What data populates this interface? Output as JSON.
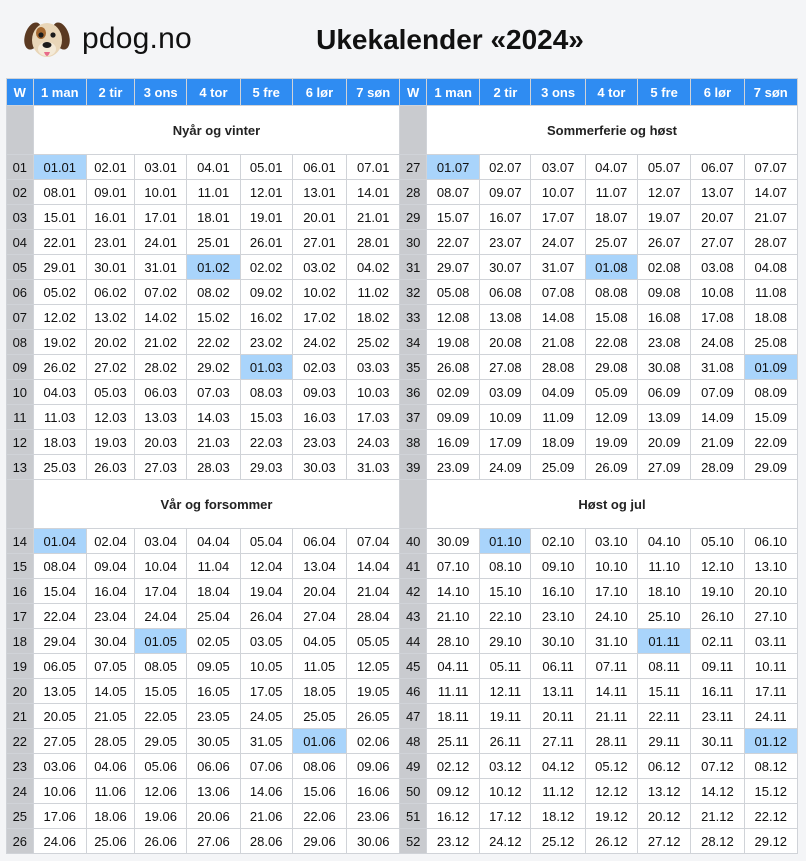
{
  "brand": {
    "name": "pdog.no",
    "icon": "dog-face-icon"
  },
  "title": "Ukekalender «2024»",
  "header": {
    "week_col": "W",
    "days": [
      "1 man",
      "2 tir",
      "3 ons",
      "4 tor",
      "5 fre",
      "6 lør",
      "7 søn"
    ]
  },
  "colors": {
    "header_bg": "#2f8cf2",
    "highlight": "#a9d4fb",
    "week_col_bg": "#c9cbcf"
  },
  "blocks": [
    {
      "left": {
        "title": "Nyår og vinter",
        "rows": [
          {
            "w": "01",
            "d": [
              "01.01",
              "02.01",
              "03.01",
              "04.01",
              "05.01",
              "06.01",
              "07.01"
            ],
            "hl": [
              0
            ]
          },
          {
            "w": "02",
            "d": [
              "08.01",
              "09.01",
              "10.01",
              "11.01",
              "12.01",
              "13.01",
              "14.01"
            ],
            "hl": []
          },
          {
            "w": "03",
            "d": [
              "15.01",
              "16.01",
              "17.01",
              "18.01",
              "19.01",
              "20.01",
              "21.01"
            ],
            "hl": []
          },
          {
            "w": "04",
            "d": [
              "22.01",
              "23.01",
              "24.01",
              "25.01",
              "26.01",
              "27.01",
              "28.01"
            ],
            "hl": []
          },
          {
            "w": "05",
            "d": [
              "29.01",
              "30.01",
              "31.01",
              "01.02",
              "02.02",
              "03.02",
              "04.02"
            ],
            "hl": [
              3
            ]
          },
          {
            "w": "06",
            "d": [
              "05.02",
              "06.02",
              "07.02",
              "08.02",
              "09.02",
              "10.02",
              "11.02"
            ],
            "hl": []
          },
          {
            "w": "07",
            "d": [
              "12.02",
              "13.02",
              "14.02",
              "15.02",
              "16.02",
              "17.02",
              "18.02"
            ],
            "hl": []
          },
          {
            "w": "08",
            "d": [
              "19.02",
              "20.02",
              "21.02",
              "22.02",
              "23.02",
              "24.02",
              "25.02"
            ],
            "hl": []
          },
          {
            "w": "09",
            "d": [
              "26.02",
              "27.02",
              "28.02",
              "29.02",
              "01.03",
              "02.03",
              "03.03"
            ],
            "hl": [
              4
            ]
          },
          {
            "w": "10",
            "d": [
              "04.03",
              "05.03",
              "06.03",
              "07.03",
              "08.03",
              "09.03",
              "10.03"
            ],
            "hl": []
          },
          {
            "w": "11",
            "d": [
              "11.03",
              "12.03",
              "13.03",
              "14.03",
              "15.03",
              "16.03",
              "17.03"
            ],
            "hl": []
          },
          {
            "w": "12",
            "d": [
              "18.03",
              "19.03",
              "20.03",
              "21.03",
              "22.03",
              "23.03",
              "24.03"
            ],
            "hl": []
          },
          {
            "w": "13",
            "d": [
              "25.03",
              "26.03",
              "27.03",
              "28.03",
              "29.03",
              "30.03",
              "31.03"
            ],
            "hl": []
          }
        ]
      },
      "right": {
        "title": "Sommerferie og høst",
        "rows": [
          {
            "w": "27",
            "d": [
              "01.07",
              "02.07",
              "03.07",
              "04.07",
              "05.07",
              "06.07",
              "07.07"
            ],
            "hl": [
              0
            ]
          },
          {
            "w": "28",
            "d": [
              "08.07",
              "09.07",
              "10.07",
              "11.07",
              "12.07",
              "13.07",
              "14.07"
            ],
            "hl": []
          },
          {
            "w": "29",
            "d": [
              "15.07",
              "16.07",
              "17.07",
              "18.07",
              "19.07",
              "20.07",
              "21.07"
            ],
            "hl": []
          },
          {
            "w": "30",
            "d": [
              "22.07",
              "23.07",
              "24.07",
              "25.07",
              "26.07",
              "27.07",
              "28.07"
            ],
            "hl": []
          },
          {
            "w": "31",
            "d": [
              "29.07",
              "30.07",
              "31.07",
              "01.08",
              "02.08",
              "03.08",
              "04.08"
            ],
            "hl": [
              3
            ]
          },
          {
            "w": "32",
            "d": [
              "05.08",
              "06.08",
              "07.08",
              "08.08",
              "09.08",
              "10.08",
              "11.08"
            ],
            "hl": []
          },
          {
            "w": "33",
            "d": [
              "12.08",
              "13.08",
              "14.08",
              "15.08",
              "16.08",
              "17.08",
              "18.08"
            ],
            "hl": []
          },
          {
            "w": "34",
            "d": [
              "19.08",
              "20.08",
              "21.08",
              "22.08",
              "23.08",
              "24.08",
              "25.08"
            ],
            "hl": []
          },
          {
            "w": "35",
            "d": [
              "26.08",
              "27.08",
              "28.08",
              "29.08",
              "30.08",
              "31.08",
              "01.09"
            ],
            "hl": [
              6
            ]
          },
          {
            "w": "36",
            "d": [
              "02.09",
              "03.09",
              "04.09",
              "05.09",
              "06.09",
              "07.09",
              "08.09"
            ],
            "hl": []
          },
          {
            "w": "37",
            "d": [
              "09.09",
              "10.09",
              "11.09",
              "12.09",
              "13.09",
              "14.09",
              "15.09"
            ],
            "hl": []
          },
          {
            "w": "38",
            "d": [
              "16.09",
              "17.09",
              "18.09",
              "19.09",
              "20.09",
              "21.09",
              "22.09"
            ],
            "hl": []
          },
          {
            "w": "39",
            "d": [
              "23.09",
              "24.09",
              "25.09",
              "26.09",
              "27.09",
              "28.09",
              "29.09"
            ],
            "hl": []
          }
        ]
      }
    },
    {
      "left": {
        "title": "Vår og forsommer",
        "rows": [
          {
            "w": "14",
            "d": [
              "01.04",
              "02.04",
              "03.04",
              "04.04",
              "05.04",
              "06.04",
              "07.04"
            ],
            "hl": [
              0
            ]
          },
          {
            "w": "15",
            "d": [
              "08.04",
              "09.04",
              "10.04",
              "11.04",
              "12.04",
              "13.04",
              "14.04"
            ],
            "hl": []
          },
          {
            "w": "16",
            "d": [
              "15.04",
              "16.04",
              "17.04",
              "18.04",
              "19.04",
              "20.04",
              "21.04"
            ],
            "hl": []
          },
          {
            "w": "17",
            "d": [
              "22.04",
              "23.04",
              "24.04",
              "25.04",
              "26.04",
              "27.04",
              "28.04"
            ],
            "hl": []
          },
          {
            "w": "18",
            "d": [
              "29.04",
              "30.04",
              "01.05",
              "02.05",
              "03.05",
              "04.05",
              "05.05"
            ],
            "hl": [
              2
            ]
          },
          {
            "w": "19",
            "d": [
              "06.05",
              "07.05",
              "08.05",
              "09.05",
              "10.05",
              "11.05",
              "12.05"
            ],
            "hl": []
          },
          {
            "w": "20",
            "d": [
              "13.05",
              "14.05",
              "15.05",
              "16.05",
              "17.05",
              "18.05",
              "19.05"
            ],
            "hl": []
          },
          {
            "w": "21",
            "d": [
              "20.05",
              "21.05",
              "22.05",
              "23.05",
              "24.05",
              "25.05",
              "26.05"
            ],
            "hl": []
          },
          {
            "w": "22",
            "d": [
              "27.05",
              "28.05",
              "29.05",
              "30.05",
              "31.05",
              "01.06",
              "02.06"
            ],
            "hl": [
              5
            ]
          },
          {
            "w": "23",
            "d": [
              "03.06",
              "04.06",
              "05.06",
              "06.06",
              "07.06",
              "08.06",
              "09.06"
            ],
            "hl": []
          },
          {
            "w": "24",
            "d": [
              "10.06",
              "11.06",
              "12.06",
              "13.06",
              "14.06",
              "15.06",
              "16.06"
            ],
            "hl": []
          },
          {
            "w": "25",
            "d": [
              "17.06",
              "18.06",
              "19.06",
              "20.06",
              "21.06",
              "22.06",
              "23.06"
            ],
            "hl": []
          },
          {
            "w": "26",
            "d": [
              "24.06",
              "25.06",
              "26.06",
              "27.06",
              "28.06",
              "29.06",
              "30.06"
            ],
            "hl": []
          }
        ]
      },
      "right": {
        "title": "Høst og jul",
        "rows": [
          {
            "w": "40",
            "d": [
              "30.09",
              "01.10",
              "02.10",
              "03.10",
              "04.10",
              "05.10",
              "06.10"
            ],
            "hl": [
              1
            ]
          },
          {
            "w": "41",
            "d": [
              "07.10",
              "08.10",
              "09.10",
              "10.10",
              "11.10",
              "12.10",
              "13.10"
            ],
            "hl": []
          },
          {
            "w": "42",
            "d": [
              "14.10",
              "15.10",
              "16.10",
              "17.10",
              "18.10",
              "19.10",
              "20.10"
            ],
            "hl": []
          },
          {
            "w": "43",
            "d": [
              "21.10",
              "22.10",
              "23.10",
              "24.10",
              "25.10",
              "26.10",
              "27.10"
            ],
            "hl": []
          },
          {
            "w": "44",
            "d": [
              "28.10",
              "29.10",
              "30.10",
              "31.10",
              "01.11",
              "02.11",
              "03.11"
            ],
            "hl": [
              4
            ]
          },
          {
            "w": "45",
            "d": [
              "04.11",
              "05.11",
              "06.11",
              "07.11",
              "08.11",
              "09.11",
              "10.11"
            ],
            "hl": []
          },
          {
            "w": "46",
            "d": [
              "11.11",
              "12.11",
              "13.11",
              "14.11",
              "15.11",
              "16.11",
              "17.11"
            ],
            "hl": []
          },
          {
            "w": "47",
            "d": [
              "18.11",
              "19.11",
              "20.11",
              "21.11",
              "22.11",
              "23.11",
              "24.11"
            ],
            "hl": []
          },
          {
            "w": "48",
            "d": [
              "25.11",
              "26.11",
              "27.11",
              "28.11",
              "29.11",
              "30.11",
              "01.12"
            ],
            "hl": [
              6
            ]
          },
          {
            "w": "49",
            "d": [
              "02.12",
              "03.12",
              "04.12",
              "05.12",
              "06.12",
              "07.12",
              "08.12"
            ],
            "hl": []
          },
          {
            "w": "50",
            "d": [
              "09.12",
              "10.12",
              "11.12",
              "12.12",
              "13.12",
              "14.12",
              "15.12"
            ],
            "hl": []
          },
          {
            "w": "51",
            "d": [
              "16.12",
              "17.12",
              "18.12",
              "19.12",
              "20.12",
              "21.12",
              "22.12"
            ],
            "hl": []
          },
          {
            "w": "52",
            "d": [
              "23.12",
              "24.12",
              "25.12",
              "26.12",
              "27.12",
              "28.12",
              "29.12"
            ],
            "hl": []
          }
        ]
      }
    }
  ]
}
